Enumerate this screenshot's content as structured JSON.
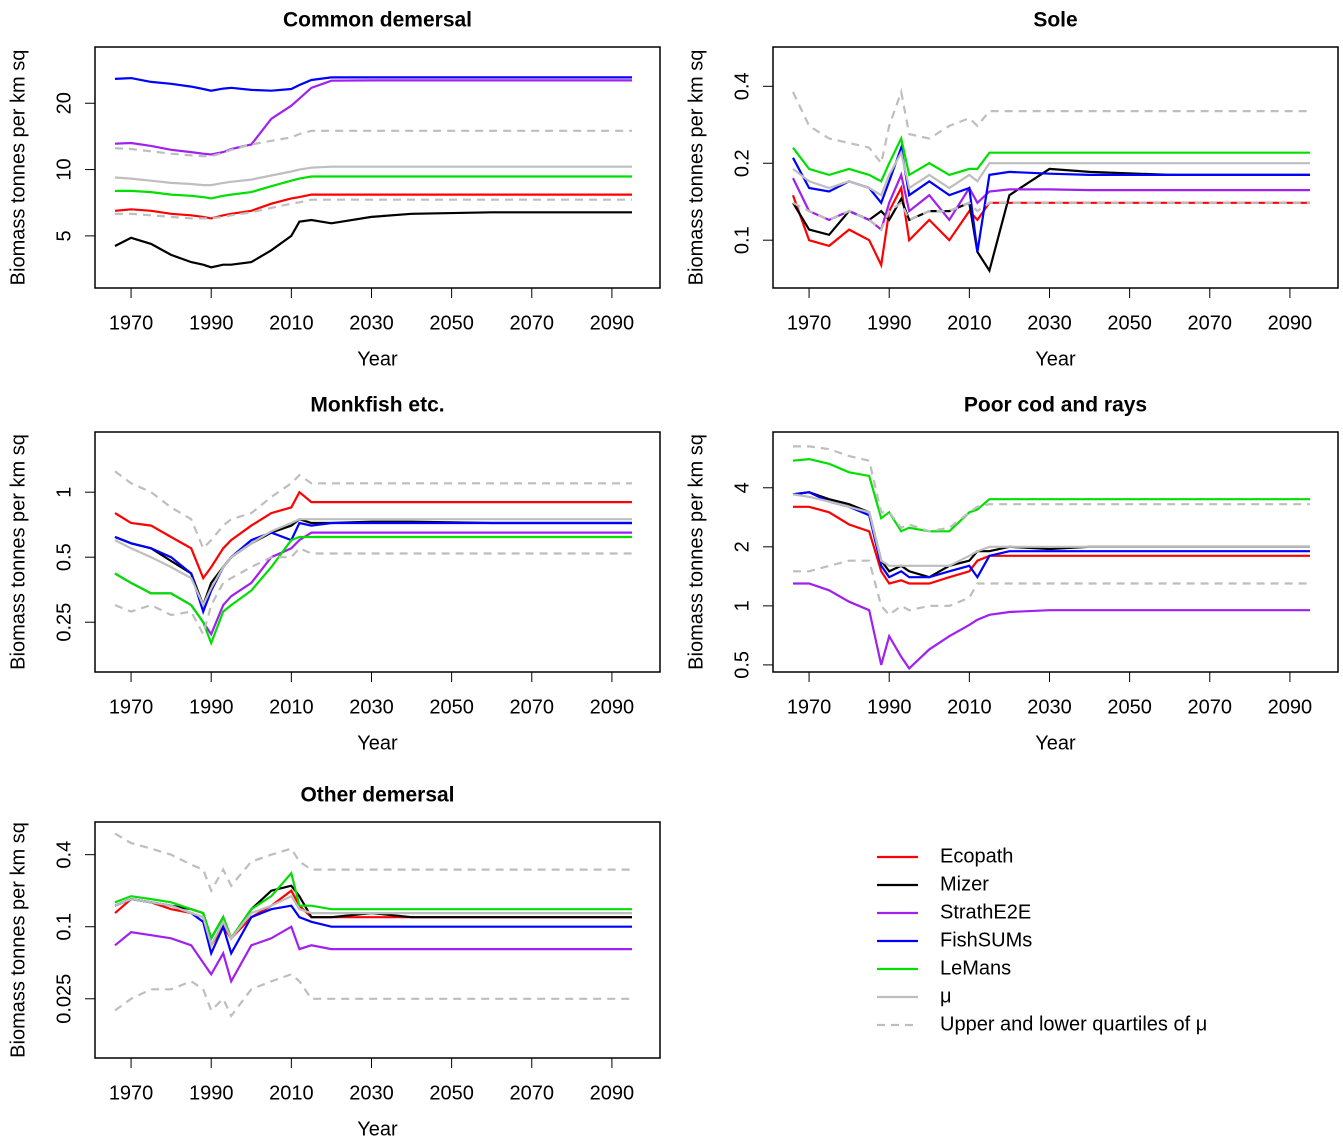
{
  "legend": {
    "items": [
      {
        "name": "Ecopath",
        "color": "#ff0000"
      },
      {
        "name": "Mizer",
        "color": "#000000"
      },
      {
        "name": "StrathE2E",
        "color": "#a020f0"
      },
      {
        "name": "FishSUMs",
        "color": "#0000ff"
      },
      {
        "name": "LeMans",
        "color": "#00e000"
      },
      {
        "name": "μ",
        "color": "#bebebe"
      },
      {
        "name": "Upper and lower quartiles of μ",
        "color": "#bebebe",
        "dashed": true
      }
    ]
  },
  "chart_data": [
    {
      "type": "line",
      "title": "Common demersal",
      "xlabel": "Year",
      "ylabel": "Biomass tonnes per km sq",
      "log_y": true,
      "xlim": [
        1961,
        2102
      ],
      "ylim": [
        2.9,
        36
      ],
      "xticks": [
        1970,
        1990,
        2010,
        2030,
        2050,
        2070,
        2090
      ],
      "yticks": [
        5,
        10,
        20
      ],
      "x": [
        1966,
        1970,
        1975,
        1980,
        1985,
        1988,
        1990,
        1993,
        1995,
        2000,
        2005,
        2010,
        2012,
        2015,
        2020,
        2030,
        2040,
        2060,
        2095
      ],
      "series": [
        {
          "values": [
            6.5,
            6.6,
            6.5,
            6.3,
            6.2,
            6.1,
            6.0,
            6.2,
            6.3,
            6.5,
            7.0,
            7.4,
            7.5,
            7.7,
            7.7,
            7.7,
            7.7,
            7.7,
            7.7
          ]
        },
        {
          "values": [
            4.5,
            4.9,
            4.6,
            4.1,
            3.8,
            3.7,
            3.6,
            3.7,
            3.7,
            3.8,
            4.3,
            5.0,
            5.8,
            5.9,
            5.7,
            6.1,
            6.3,
            6.4,
            6.4
          ]
        },
        {
          "values": [
            13.1,
            13.2,
            12.8,
            12.3,
            12.0,
            11.8,
            11.7,
            12.0,
            12.4,
            13.0,
            17.0,
            19.5,
            21.0,
            23.5,
            25.3,
            25.4,
            25.4,
            25.4,
            25.4
          ]
        },
        {
          "values": [
            25.8,
            26.0,
            25.0,
            24.5,
            23.8,
            23.2,
            22.8,
            23.3,
            23.5,
            23.0,
            22.8,
            23.2,
            24.2,
            25.5,
            26.2,
            26.2,
            26.2,
            26.2,
            26.2
          ]
        },
        {
          "values": [
            8.0,
            8.0,
            7.9,
            7.7,
            7.6,
            7.5,
            7.4,
            7.6,
            7.7,
            7.9,
            8.4,
            8.9,
            9.1,
            9.3,
            9.3,
            9.3,
            9.3,
            9.3,
            9.3
          ]
        },
        {
          "values": [
            9.2,
            9.1,
            8.9,
            8.7,
            8.6,
            8.5,
            8.5,
            8.7,
            8.8,
            9.0,
            9.4,
            9.8,
            10.0,
            10.2,
            10.3,
            10.3,
            10.3,
            10.3,
            10.3
          ]
        },
        {
          "upper": [
            12.5,
            12.4,
            12.1,
            11.8,
            11.6,
            11.5,
            11.5,
            11.9,
            12.3,
            13.0,
            13.5,
            14.0,
            14.5,
            15.0,
            15.0,
            15.0,
            15.0,
            15.0,
            15.0
          ],
          "lower": [
            6.3,
            6.3,
            6.2,
            6.1,
            6.0,
            6.0,
            6.0,
            6.1,
            6.2,
            6.4,
            6.7,
            7.0,
            7.1,
            7.3,
            7.3,
            7.3,
            7.3,
            7.3,
            7.3
          ]
        }
      ]
    },
    {
      "type": "line",
      "title": "Sole",
      "xlabel": "Year",
      "ylabel": "Biomass tonnes per km sq",
      "log_y": true,
      "xlim": [
        1961,
        2102
      ],
      "ylim": [
        0.065,
        0.57
      ],
      "xticks": [
        1970,
        1990,
        2010,
        2030,
        2050,
        2070,
        2090
      ],
      "yticks": [
        0.1,
        0.2,
        0.4
      ],
      "x": [
        1966,
        1970,
        1975,
        1980,
        1985,
        1988,
        1990,
        1993,
        1995,
        2000,
        2005,
        2010,
        2012,
        2015,
        2020,
        2030,
        2040,
        2060,
        2095
      ],
      "series": [
        {
          "values": [
            0.15,
            0.1,
            0.095,
            0.11,
            0.1,
            0.08,
            0.13,
            0.16,
            0.1,
            0.12,
            0.1,
            0.13,
            0.12,
            0.14,
            0.14,
            0.14,
            0.14,
            0.14,
            0.14
          ]
        },
        {
          "values": [
            0.14,
            0.11,
            0.105,
            0.13,
            0.12,
            0.13,
            0.12,
            0.145,
            0.12,
            0.13,
            0.13,
            0.14,
            0.09,
            0.076,
            0.15,
            0.19,
            0.185,
            0.18,
            0.18
          ]
        },
        {
          "values": [
            0.175,
            0.13,
            0.12,
            0.13,
            0.12,
            0.11,
            0.14,
            0.18,
            0.13,
            0.15,
            0.12,
            0.16,
            0.14,
            0.155,
            0.158,
            0.158,
            0.157,
            0.157,
            0.157
          ]
        },
        {
          "values": [
            0.21,
            0.16,
            0.155,
            0.17,
            0.16,
            0.14,
            0.17,
            0.23,
            0.15,
            0.17,
            0.15,
            0.16,
            0.09,
            0.18,
            0.185,
            0.182,
            0.18,
            0.18,
            0.18
          ]
        },
        {
          "values": [
            0.23,
            0.19,
            0.18,
            0.19,
            0.18,
            0.17,
            0.2,
            0.25,
            0.18,
            0.2,
            0.18,
            0.19,
            0.19,
            0.22,
            0.22,
            0.22,
            0.22,
            0.22,
            0.22
          ]
        },
        {
          "values": [
            0.19,
            0.17,
            0.16,
            0.17,
            0.16,
            0.15,
            0.18,
            0.22,
            0.16,
            0.18,
            0.16,
            0.18,
            0.17,
            0.2,
            0.2,
            0.2,
            0.2,
            0.2,
            0.2
          ]
        },
        {
          "upper": [
            0.38,
            0.28,
            0.25,
            0.24,
            0.23,
            0.2,
            0.28,
            0.38,
            0.26,
            0.25,
            0.28,
            0.3,
            0.28,
            0.32,
            0.32,
            0.32,
            0.32,
            0.32,
            0.32
          ],
          "lower": [
            0.14,
            0.13,
            0.12,
            0.13,
            0.12,
            0.11,
            0.13,
            0.14,
            0.12,
            0.13,
            0.13,
            0.14,
            0.13,
            0.14,
            0.14,
            0.14,
            0.14,
            0.14,
            0.14
          ]
        }
      ]
    },
    {
      "type": "line",
      "title": "Monkfish etc.",
      "xlabel": "Year",
      "ylabel": "Biomass tonnes per km sq",
      "log_y": true,
      "xlim": [
        1961,
        2102
      ],
      "ylim": [
        0.147,
        1.9
      ],
      "xticks": [
        1970,
        1990,
        2010,
        2030,
        2050,
        2070,
        2090
      ],
      "yticks": [
        0.25,
        0.5,
        1
      ],
      "x": [
        1966,
        1970,
        1975,
        1980,
        1985,
        1988,
        1990,
        1993,
        1995,
        2000,
        2005,
        2010,
        2012,
        2015,
        2020,
        2030,
        2040,
        2060,
        2095
      ],
      "series": [
        {
          "values": [
            0.8,
            0.72,
            0.7,
            0.62,
            0.55,
            0.4,
            0.45,
            0.55,
            0.6,
            0.7,
            0.8,
            0.85,
            1.0,
            0.9,
            0.9,
            0.9,
            0.9,
            0.9,
            0.9
          ]
        },
        {
          "values": [
            0.62,
            0.58,
            0.55,
            0.48,
            0.42,
            0.3,
            0.38,
            0.45,
            0.5,
            0.58,
            0.65,
            0.7,
            0.75,
            0.72,
            0.72,
            0.73,
            0.73,
            0.72,
            0.72
          ]
        },
        {
          "values": [
            0.42,
            0.38,
            0.34,
            0.34,
            0.3,
            0.25,
            0.22,
            0.3,
            0.33,
            0.38,
            0.5,
            0.55,
            0.6,
            0.65,
            0.65,
            0.65,
            0.65,
            0.65,
            0.65
          ]
        },
        {
          "values": [
            0.62,
            0.58,
            0.55,
            0.5,
            0.42,
            0.28,
            0.35,
            0.45,
            0.5,
            0.6,
            0.65,
            0.6,
            0.72,
            0.7,
            0.72,
            0.72,
            0.72,
            0.72,
            0.72
          ]
        },
        {
          "values": [
            0.42,
            0.38,
            0.34,
            0.34,
            0.3,
            0.25,
            0.2,
            0.28,
            0.3,
            0.35,
            0.45,
            0.6,
            0.62,
            0.62,
            0.62,
            0.62,
            0.62,
            0.62,
            0.62
          ]
        },
        {
          "values": [
            0.6,
            0.55,
            0.5,
            0.45,
            0.4,
            0.3,
            0.36,
            0.45,
            0.5,
            0.58,
            0.66,
            0.72,
            0.75,
            0.75,
            0.75,
            0.75,
            0.75,
            0.75,
            0.75
          ]
        },
        {
          "upper": [
            1.25,
            1.1,
            1.0,
            0.85,
            0.75,
            0.55,
            0.6,
            0.7,
            0.75,
            0.8,
            0.95,
            1.1,
            1.2,
            1.1,
            1.1,
            1.1,
            1.1,
            1.1,
            1.1
          ],
          "lower": [
            0.3,
            0.28,
            0.3,
            0.27,
            0.28,
            0.22,
            0.3,
            0.38,
            0.4,
            0.45,
            0.5,
            0.5,
            0.55,
            0.52,
            0.52,
            0.52,
            0.52,
            0.52,
            0.52
          ]
        }
      ]
    },
    {
      "type": "line",
      "title": "Poor cod and rays",
      "xlabel": "Year",
      "ylabel": "Biomass tonnes per km sq",
      "log_y": true,
      "xlim": [
        1961,
        2102
      ],
      "ylim": [
        0.46,
        7.7
      ],
      "xticks": [
        1970,
        1990,
        2010,
        2030,
        2050,
        2070,
        2090
      ],
      "yticks": [
        0.5,
        1,
        2,
        4
      ],
      "x": [
        1966,
        1970,
        1975,
        1980,
        1985,
        1988,
        1990,
        1993,
        1995,
        2000,
        2005,
        2010,
        2012,
        2015,
        2020,
        2030,
        2040,
        2060,
        2095
      ],
      "series": [
        {
          "values": [
            3.2,
            3.2,
            3.0,
            2.6,
            2.4,
            1.5,
            1.3,
            1.35,
            1.3,
            1.3,
            1.4,
            1.5,
            1.7,
            1.8,
            1.8,
            1.8,
            1.8,
            1.8,
            1.8
          ]
        },
        {
          "values": [
            3.7,
            3.8,
            3.5,
            3.3,
            3.0,
            1.7,
            1.5,
            1.6,
            1.5,
            1.4,
            1.6,
            1.7,
            1.9,
            1.9,
            2.0,
            1.95,
            2.0,
            2.0,
            2.0
          ]
        },
        {
          "values": [
            1.3,
            1.3,
            1.2,
            1.05,
            0.95,
            0.5,
            0.7,
            0.55,
            0.48,
            0.6,
            0.7,
            0.8,
            0.85,
            0.9,
            0.93,
            0.95,
            0.95,
            0.95,
            0.95
          ]
        },
        {
          "values": [
            3.7,
            3.8,
            3.4,
            3.2,
            2.9,
            1.6,
            1.4,
            1.5,
            1.4,
            1.4,
            1.5,
            1.6,
            1.4,
            1.8,
            1.9,
            1.9,
            1.9,
            1.9,
            1.9
          ]
        },
        {
          "values": [
            5.5,
            5.6,
            5.3,
            4.8,
            4.6,
            2.8,
            3.0,
            2.4,
            2.5,
            2.4,
            2.4,
            3.0,
            3.1,
            3.5,
            3.5,
            3.5,
            3.5,
            3.5,
            3.5
          ]
        },
        {
          "values": [
            3.7,
            3.6,
            3.4,
            3.2,
            3.0,
            1.7,
            1.6,
            1.6,
            1.6,
            1.6,
            1.6,
            1.8,
            1.9,
            2.0,
            2.0,
            2.0,
            2.0,
            2.0,
            2.0
          ]
        },
        {
          "upper": [
            6.5,
            6.5,
            6.3,
            5.8,
            5.5,
            3.0,
            3.0,
            2.5,
            2.6,
            2.4,
            2.5,
            3.0,
            3.2,
            3.3,
            3.3,
            3.3,
            3.3,
            3.3,
            3.3
          ],
          "lower": [
            1.5,
            1.5,
            1.6,
            1.7,
            1.7,
            1.0,
            0.9,
            1.0,
            0.95,
            1.0,
            1.0,
            1.1,
            1.3,
            1.3,
            1.3,
            1.3,
            1.3,
            1.3,
            1.3
          ]
        }
      ]
    },
    {
      "type": "line",
      "title": "Other demersal",
      "xlabel": "Year",
      "ylabel": "Biomass tonnes per km sq",
      "log_y": true,
      "xlim": [
        1961,
        2102
      ],
      "ylim": [
        0.008,
        0.75
      ],
      "xticks": [
        1970,
        1990,
        2010,
        2030,
        2050,
        2070,
        2090
      ],
      "yticks": [
        0.025,
        0.1,
        0.4
      ],
      "x": [
        1966,
        1970,
        1975,
        1980,
        1985,
        1988,
        1990,
        1993,
        1995,
        2000,
        2005,
        2010,
        2012,
        2015,
        2020,
        2030,
        2040,
        2060,
        2095
      ],
      "series": [
        {
          "values": [
            0.13,
            0.17,
            0.16,
            0.14,
            0.13,
            0.12,
            0.07,
            0.1,
            0.08,
            0.12,
            0.15,
            0.2,
            0.15,
            0.12,
            0.12,
            0.12,
            0.12,
            0.12,
            0.12
          ]
        },
        {
          "values": [
            0.15,
            0.17,
            0.16,
            0.15,
            0.14,
            0.13,
            0.08,
            0.12,
            0.08,
            0.14,
            0.2,
            0.22,
            0.18,
            0.12,
            0.12,
            0.13,
            0.12,
            0.12,
            0.12
          ]
        },
        {
          "values": [
            0.07,
            0.09,
            0.085,
            0.08,
            0.07,
            0.05,
            0.04,
            0.06,
            0.035,
            0.07,
            0.08,
            0.1,
            0.065,
            0.07,
            0.065,
            0.065,
            0.065,
            0.065,
            0.065
          ]
        },
        {
          "values": [
            0.15,
            0.17,
            0.16,
            0.15,
            0.13,
            0.11,
            0.06,
            0.1,
            0.06,
            0.12,
            0.14,
            0.15,
            0.12,
            0.11,
            0.1,
            0.1,
            0.1,
            0.1,
            0.1
          ]
        },
        {
          "values": [
            0.16,
            0.18,
            0.17,
            0.16,
            0.14,
            0.13,
            0.08,
            0.12,
            0.08,
            0.14,
            0.18,
            0.28,
            0.15,
            0.15,
            0.14,
            0.14,
            0.14,
            0.14,
            0.14
          ]
        },
        {
          "values": [
            0.15,
            0.17,
            0.16,
            0.15,
            0.13,
            0.12,
            0.07,
            0.11,
            0.08,
            0.13,
            0.15,
            0.18,
            0.14,
            0.13,
            0.13,
            0.13,
            0.13,
            0.13,
            0.13
          ]
        },
        {
          "upper": [
            0.6,
            0.5,
            0.45,
            0.4,
            0.33,
            0.3,
            0.2,
            0.3,
            0.22,
            0.35,
            0.4,
            0.45,
            0.35,
            0.3,
            0.3,
            0.3,
            0.3,
            0.3,
            0.3
          ],
          "lower": [
            0.02,
            0.025,
            0.03,
            0.03,
            0.035,
            0.03,
            0.02,
            0.025,
            0.018,
            0.03,
            0.035,
            0.04,
            0.035,
            0.025,
            0.025,
            0.025,
            0.025,
            0.025,
            0.025
          ]
        }
      ]
    }
  ]
}
